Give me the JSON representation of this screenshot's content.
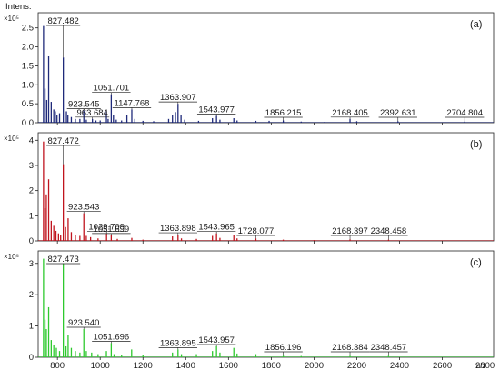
{
  "chart_data": {
    "type": "line",
    "ylabel": "Intens.",
    "xlabel": "m/z",
    "xlim": [
      710,
      2840
    ],
    "x_ticks": [
      "800",
      "1000",
      "1200",
      "1400",
      "1600",
      "1800",
      "2000",
      "2200",
      "2400",
      "2600",
      "2800"
    ],
    "x_tick_values": [
      800,
      1000,
      1200,
      1400,
      1600,
      1800,
      2000,
      2200,
      2400,
      2600,
      2800
    ],
    "panels": [
      {
        "panel_label": "(a)",
        "scale_label": "×10⁵",
        "color": "#1f2a7a",
        "ylim": [
          0,
          2.9
        ],
        "y_ticks": [
          "0.0",
          "0.5",
          "1.0",
          "1.5",
          "2.0",
          "2.5"
        ],
        "y_tick_values": [
          0,
          0.5,
          1.0,
          1.5,
          2.0,
          2.5
        ],
        "peaks": [
          {
            "x": 735,
            "y": 2.55
          },
          {
            "x": 742,
            "y": 0.9
          },
          {
            "x": 750,
            "y": 0.6
          },
          {
            "x": 759,
            "y": 1.75
          },
          {
            "x": 771,
            "y": 0.55
          },
          {
            "x": 783,
            "y": 0.35
          },
          {
            "x": 790,
            "y": 0.3
          },
          {
            "x": 798,
            "y": 0.2
          },
          {
            "x": 810,
            "y": 0.25
          },
          {
            "x": 827.5,
            "y": 1.72
          },
          {
            "x": 842,
            "y": 0.3
          },
          {
            "x": 849,
            "y": 0.2
          },
          {
            "x": 865,
            "y": 0.15
          },
          {
            "x": 884,
            "y": 0.1
          },
          {
            "x": 905,
            "y": 0.1
          },
          {
            "x": 923.5,
            "y": 0.32
          },
          {
            "x": 935,
            "y": 0.08
          },
          {
            "x": 963.7,
            "y": 0.1
          },
          {
            "x": 980,
            "y": 0.06
          },
          {
            "x": 1000,
            "y": 0.06
          },
          {
            "x": 1029,
            "y": 0.3
          },
          {
            "x": 1037,
            "y": 0.1
          },
          {
            "x": 1051.7,
            "y": 0.75
          },
          {
            "x": 1062,
            "y": 0.2
          },
          {
            "x": 1075,
            "y": 0.08
          },
          {
            "x": 1100,
            "y": 0.06
          },
          {
            "x": 1125,
            "y": 0.2
          },
          {
            "x": 1147.8,
            "y": 0.35
          },
          {
            "x": 1162,
            "y": 0.1
          },
          {
            "x": 1200,
            "y": 0.05
          },
          {
            "x": 1250,
            "y": 0.04
          },
          {
            "x": 1320,
            "y": 0.1
          },
          {
            "x": 1338,
            "y": 0.2
          },
          {
            "x": 1352,
            "y": 0.28
          },
          {
            "x": 1363.9,
            "y": 0.5
          },
          {
            "x": 1378,
            "y": 0.2
          },
          {
            "x": 1395,
            "y": 0.08
          },
          {
            "x": 1460,
            "y": 0.05
          },
          {
            "x": 1525,
            "y": 0.12
          },
          {
            "x": 1543.98,
            "y": 0.18
          },
          {
            "x": 1560,
            "y": 0.08
          },
          {
            "x": 1625,
            "y": 0.12
          },
          {
            "x": 1640,
            "y": 0.06
          },
          {
            "x": 1728,
            "y": 0.05
          },
          {
            "x": 1790,
            "y": 0.05
          },
          {
            "x": 1856.2,
            "y": 0.06
          },
          {
            "x": 1940,
            "y": 0.03
          },
          {
            "x": 2050,
            "y": 0.02
          },
          {
            "x": 2168.4,
            "y": 0.1
          },
          {
            "x": 2200,
            "y": 0.04
          },
          {
            "x": 2392.6,
            "y": 0.04
          },
          {
            "x": 2704.8,
            "y": 0.03
          }
        ],
        "annotations": [
          {
            "text": "827.482",
            "x": 827.5
          },
          {
            "text": "923.545",
            "x": 923.5
          },
          {
            "text": "963.684",
            "x": 963.7
          },
          {
            "text": "1051.701",
            "x": 1051.7
          },
          {
            "text": "1147.768",
            "x": 1147.8
          },
          {
            "text": "1363.907",
            "x": 1363.9
          },
          {
            "text": "1543.977",
            "x": 1543.98
          },
          {
            "text": "1856.215",
            "x": 1856.2
          },
          {
            "text": "2168.405",
            "x": 2168.4
          },
          {
            "text": "2392.631",
            "x": 2392.6
          },
          {
            "text": "2704.804",
            "x": 2704.8
          }
        ]
      },
      {
        "panel_label": "(b)",
        "scale_label": "×10⁵",
        "color": "#c0141e",
        "ylim": [
          0,
          4.3
        ],
        "y_ticks": [
          "0",
          "1",
          "2",
          "3",
          "4"
        ],
        "y_tick_values": [
          0,
          1,
          2,
          3,
          4
        ],
        "peaks": [
          {
            "x": 735,
            "y": 3.95
          },
          {
            "x": 742,
            "y": 1.3
          },
          {
            "x": 748,
            "y": 1.85
          },
          {
            "x": 759,
            "y": 2.45
          },
          {
            "x": 771,
            "y": 0.8
          },
          {
            "x": 783,
            "y": 0.6
          },
          {
            "x": 793,
            "y": 0.4
          },
          {
            "x": 805,
            "y": 0.3
          },
          {
            "x": 815,
            "y": 0.25
          },
          {
            "x": 827.5,
            "y": 3.05
          },
          {
            "x": 838,
            "y": 0.55
          },
          {
            "x": 850,
            "y": 0.9
          },
          {
            "x": 865,
            "y": 0.35
          },
          {
            "x": 884,
            "y": 0.25
          },
          {
            "x": 905,
            "y": 0.2
          },
          {
            "x": 923.5,
            "y": 1.1
          },
          {
            "x": 935,
            "y": 0.2
          },
          {
            "x": 955,
            "y": 0.15
          },
          {
            "x": 990,
            "y": 0.1
          },
          {
            "x": 1029.7,
            "y": 0.3
          },
          {
            "x": 1051.7,
            "y": 0.22
          },
          {
            "x": 1080,
            "y": 0.08
          },
          {
            "x": 1147.8,
            "y": 0.12
          },
          {
            "x": 1200,
            "y": 0.05
          },
          {
            "x": 1338,
            "y": 0.18
          },
          {
            "x": 1363.9,
            "y": 0.25
          },
          {
            "x": 1380,
            "y": 0.1
          },
          {
            "x": 1450,
            "y": 0.08
          },
          {
            "x": 1525,
            "y": 0.2
          },
          {
            "x": 1543.97,
            "y": 0.3
          },
          {
            "x": 1560,
            "y": 0.12
          },
          {
            "x": 1625,
            "y": 0.25
          },
          {
            "x": 1640,
            "y": 0.1
          },
          {
            "x": 1728.1,
            "y": 0.1
          },
          {
            "x": 1856,
            "y": 0.05
          },
          {
            "x": 2000,
            "y": 0.03
          },
          {
            "x": 2168.4,
            "y": 0.06
          },
          {
            "x": 2348.5,
            "y": 0.05
          }
        ],
        "annotations": [
          {
            "text": "827.472",
            "x": 827.5
          },
          {
            "text": "923.543",
            "x": 923.5
          },
          {
            "text": "1029.709",
            "x": 1029.7
          },
          {
            "text": "1051.699",
            "x": 1051.7
          },
          {
            "text": "1363.898",
            "x": 1363.9
          },
          {
            "text": "1543.965",
            "x": 1543.97
          },
          {
            "text": "1728.077",
            "x": 1728.1
          },
          {
            "text": "2168.397",
            "x": 2168.4
          },
          {
            "text": "2348.458",
            "x": 2348.5
          }
        ]
      },
      {
        "panel_label": "(c)",
        "scale_label": "×10⁵",
        "color": "#2ec92e",
        "ylim": [
          0,
          3.4
        ],
        "y_ticks": [
          "0",
          "1",
          "2",
          "3"
        ],
        "y_tick_values": [
          0,
          1,
          2,
          3
        ],
        "peaks": [
          {
            "x": 735,
            "y": 3.15
          },
          {
            "x": 742,
            "y": 1.2
          },
          {
            "x": 748,
            "y": 0.9
          },
          {
            "x": 759,
            "y": 1.6
          },
          {
            "x": 771,
            "y": 0.55
          },
          {
            "x": 783,
            "y": 0.4
          },
          {
            "x": 795,
            "y": 0.3
          },
          {
            "x": 810,
            "y": 0.2
          },
          {
            "x": 827.5,
            "y": 3.0
          },
          {
            "x": 840,
            "y": 0.35
          },
          {
            "x": 850,
            "y": 0.7
          },
          {
            "x": 865,
            "y": 0.3
          },
          {
            "x": 884,
            "y": 0.2
          },
          {
            "x": 905,
            "y": 0.15
          },
          {
            "x": 923.5,
            "y": 0.9
          },
          {
            "x": 935,
            "y": 0.2
          },
          {
            "x": 960,
            "y": 0.15
          },
          {
            "x": 990,
            "y": 0.1
          },
          {
            "x": 1029,
            "y": 0.2
          },
          {
            "x": 1051.7,
            "y": 0.45
          },
          {
            "x": 1065,
            "y": 0.1
          },
          {
            "x": 1100,
            "y": 0.08
          },
          {
            "x": 1147,
            "y": 0.25
          },
          {
            "x": 1200,
            "y": 0.06
          },
          {
            "x": 1338,
            "y": 0.15
          },
          {
            "x": 1363.9,
            "y": 0.25
          },
          {
            "x": 1380,
            "y": 0.1
          },
          {
            "x": 1450,
            "y": 0.1
          },
          {
            "x": 1525,
            "y": 0.2
          },
          {
            "x": 1543.96,
            "y": 0.35
          },
          {
            "x": 1560,
            "y": 0.15
          },
          {
            "x": 1625,
            "y": 0.3
          },
          {
            "x": 1640,
            "y": 0.12
          },
          {
            "x": 1728,
            "y": 0.1
          },
          {
            "x": 1856.2,
            "y": 0.05
          },
          {
            "x": 1940,
            "y": 0.04
          },
          {
            "x": 2168.4,
            "y": 0.05
          },
          {
            "x": 2348.5,
            "y": 0.05
          }
        ],
        "annotations": [
          {
            "text": "827.473",
            "x": 827.5
          },
          {
            "text": "923.540",
            "x": 923.5
          },
          {
            "text": "1051.696",
            "x": 1051.7
          },
          {
            "text": "1363.895",
            "x": 1363.9
          },
          {
            "text": "1543.957",
            "x": 1543.96
          },
          {
            "text": "1856.196",
            "x": 1856.2
          },
          {
            "text": "2168.384",
            "x": 2168.4
          },
          {
            "text": "2348.457",
            "x": 2348.5
          }
        ]
      }
    ]
  }
}
